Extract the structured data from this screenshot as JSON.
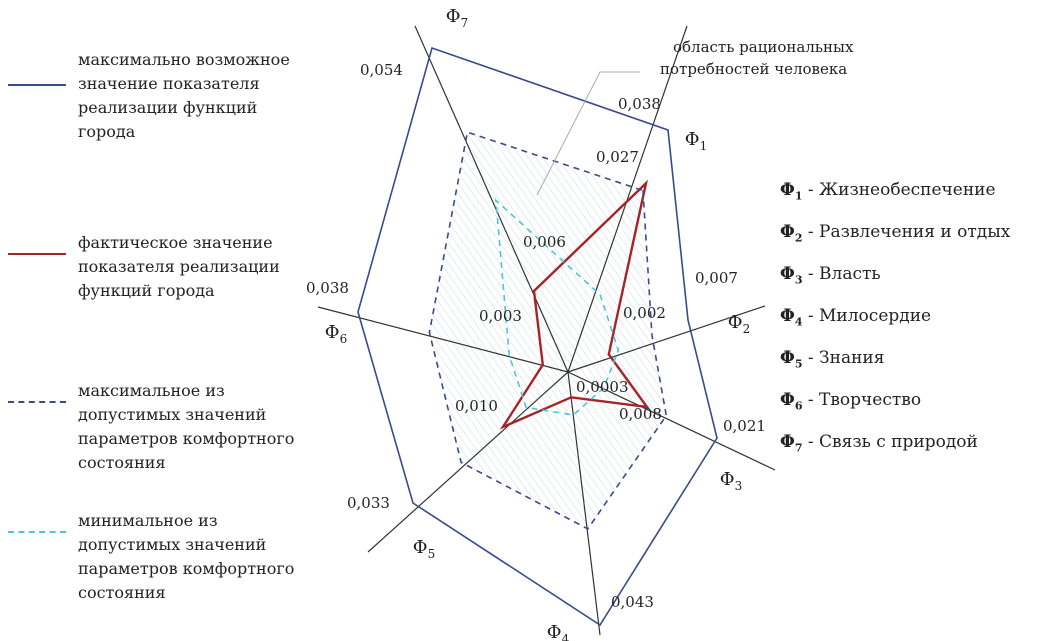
{
  "chart_data": {
    "type": "radar",
    "axes": [
      "Φ1",
      "Φ2",
      "Φ3",
      "Φ4",
      "Φ5",
      "Φ6",
      "Φ7"
    ],
    "axis_symbol": "Φ",
    "axis_indices": [
      "1",
      "2",
      "3",
      "4",
      "5",
      "6",
      "7"
    ],
    "max_possible_labels": [
      "0,038",
      "0,007",
      "0,021",
      "0,043",
      "0,033",
      "0,038",
      "0,054"
    ],
    "actual_labels": [
      "0,027",
      "0,002",
      "0,008",
      "0,0003",
      "0,010",
      "0,003",
      "0,006"
    ],
    "annotation": "область рациональных\nпотребностей человека",
    "series": [
      {
        "key": "max_possible",
        "relative_values": [
          1.0,
          1.0,
          1.0,
          1.0,
          1.0,
          1.0,
          1.0
        ],
        "color": "#3b4a8c",
        "style": "solid"
      },
      {
        "key": "actual",
        "relative_values": [
          0.78,
          0.34,
          0.53,
          0.1,
          0.42,
          0.12,
          0.25
        ],
        "color": "#a3252a",
        "style": "solid"
      },
      {
        "key": "max_allowed",
        "relative_values": [
          0.75,
          0.7,
          0.66,
          0.62,
          0.69,
          0.66,
          0.74
        ],
        "color": "#3b4a8c",
        "style": "dashed"
      },
      {
        "key": "min_allowed",
        "relative_values": [
          0.32,
          0.42,
          0.24,
          0.17,
          0.27,
          0.28,
          0.53
        ],
        "color": "#4fc3d8",
        "style": "dashed"
      }
    ]
  },
  "legend": [
    {
      "text": "максимально возможное\nзначение показателя\nреализации функций\nгорода",
      "color": "#3b4a8c",
      "style": "solid"
    },
    {
      "text": "фактическое значение\nпоказателя реализации\nфункций города",
      "color": "#a3252a",
      "style": "solid"
    },
    {
      "text": "максимальное из\nдопустимых значений\nпараметров комфортного\nсостояния",
      "color": "#3b4a8c",
      "style": "dashed"
    },
    {
      "text": "минимальное из\nдопустимых значений\nпараметров комфортного\nсостояния",
      "color": "#4fc3d8",
      "style": "dashed"
    }
  ],
  "functions": [
    {
      "symbol": "Φ",
      "index": "1",
      "label": " - Жизнеобеспечение"
    },
    {
      "symbol": "Φ",
      "index": "2",
      "label": " - Развлечения и отдых"
    },
    {
      "symbol": "Φ",
      "index": "3",
      "label": " - Власть"
    },
    {
      "symbol": "Φ",
      "index": "4",
      "label": " - Милосердие"
    },
    {
      "symbol": "Φ",
      "index": "5",
      "label": " - Знания"
    },
    {
      "symbol": "Φ",
      "index": "6",
      "label": " - Творчество"
    },
    {
      "symbol": "Φ",
      "index": "7",
      "label": " - Связь с природой"
    }
  ]
}
